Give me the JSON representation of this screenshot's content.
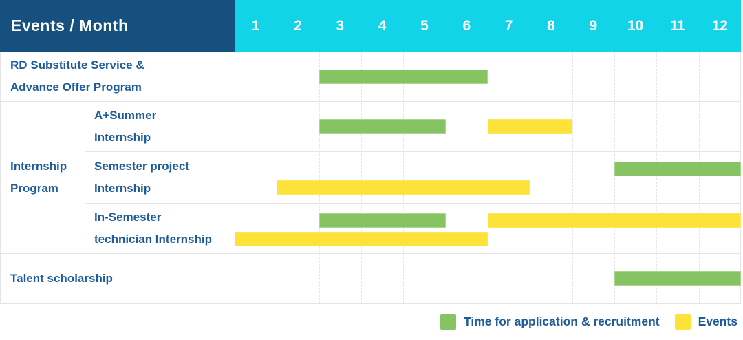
{
  "header": {
    "label": "Events / Month",
    "months": [
      "1",
      "2",
      "3",
      "4",
      "5",
      "6",
      "7",
      "8",
      "9",
      "10",
      "11",
      "12"
    ]
  },
  "legend": {
    "items": [
      {
        "key": "green",
        "label": "Time for application & recruitment"
      },
      {
        "key": "yellow",
        "label": "Events"
      }
    ]
  },
  "colors": {
    "header_bg": "#15507F",
    "months_bg": "#12D4E8",
    "header_text": "#FFFFFF",
    "label_text": "#1E5C9B",
    "green": "#86C363",
    "green_border": "#ABD78D",
    "yellow": "#FDE23A",
    "yellow_border": "#F9E75E",
    "grid_line": "#E3E5E7",
    "month_line": "#E2E4E6"
  },
  "chart_data": {
    "type": "gantt",
    "title": "Events / Month",
    "x_axis": {
      "label": "Month",
      "ticks": [
        "1",
        "2",
        "3",
        "4",
        "5",
        "6",
        "7",
        "8",
        "9",
        "10",
        "11",
        "12"
      ],
      "range": [
        1,
        12
      ]
    },
    "series_legend": [
      {
        "name": "Time for application & recruitment",
        "color": "#86C363"
      },
      {
        "name": "Events",
        "color": "#FDE23A"
      }
    ],
    "group_label": "Internship Program",
    "group_label_lines": [
      "Internship",
      "Program"
    ],
    "rows": [
      {
        "group": "",
        "label": "RD Substitute Service & Advance Offer Program",
        "label_lines": [
          "RD Substitute Service &",
          "Advance Offer Program"
        ],
        "bars": [
          {
            "series": "Time for application & recruitment",
            "color_key": "green",
            "start_month": 3,
            "end_month": 6,
            "lane": "center"
          }
        ]
      },
      {
        "group": "Internship Program",
        "label": "A+Summer Internship",
        "label_lines": [
          "A+Summer",
          "Internship"
        ],
        "bars": [
          {
            "series": "Time for application & recruitment",
            "color_key": "green",
            "start_month": 3,
            "end_month": 5,
            "lane": "center"
          },
          {
            "series": "Events",
            "color_key": "yellow",
            "start_month": 7,
            "end_month": 8,
            "lane": "center"
          }
        ]
      },
      {
        "group": "Internship Program",
        "label": "Semester project Internship",
        "label_lines": [
          "Semester project",
          "Internship"
        ],
        "bars": [
          {
            "series": "Time for application & recruitment",
            "color_key": "green",
            "start_month": 10,
            "end_month": 12,
            "lane": "top"
          },
          {
            "series": "Events",
            "color_key": "yellow",
            "start_month": 2,
            "end_month": 7,
            "lane": "bottom"
          }
        ]
      },
      {
        "group": "Internship Program",
        "label": "In-Semester technician Internship",
        "label_lines": [
          "In-Semester",
          "technician Internship"
        ],
        "bars": [
          {
            "series": "Time for application & recruitment",
            "color_key": "green",
            "start_month": 3,
            "end_month": 5,
            "lane": "top"
          },
          {
            "series": "Events",
            "color_key": "yellow",
            "start_month": 7,
            "end_month": 12,
            "lane": "top"
          },
          {
            "series": "Events",
            "color_key": "yellow",
            "start_month": 1,
            "end_month": 6,
            "lane": "bottom"
          }
        ]
      },
      {
        "group": "",
        "label": "Talent scholarship",
        "label_lines": [
          "Talent scholarship"
        ],
        "bars": [
          {
            "series": "Time for application & recruitment",
            "color_key": "green",
            "start_month": 10,
            "end_month": 12,
            "lane": "center"
          }
        ]
      }
    ]
  }
}
